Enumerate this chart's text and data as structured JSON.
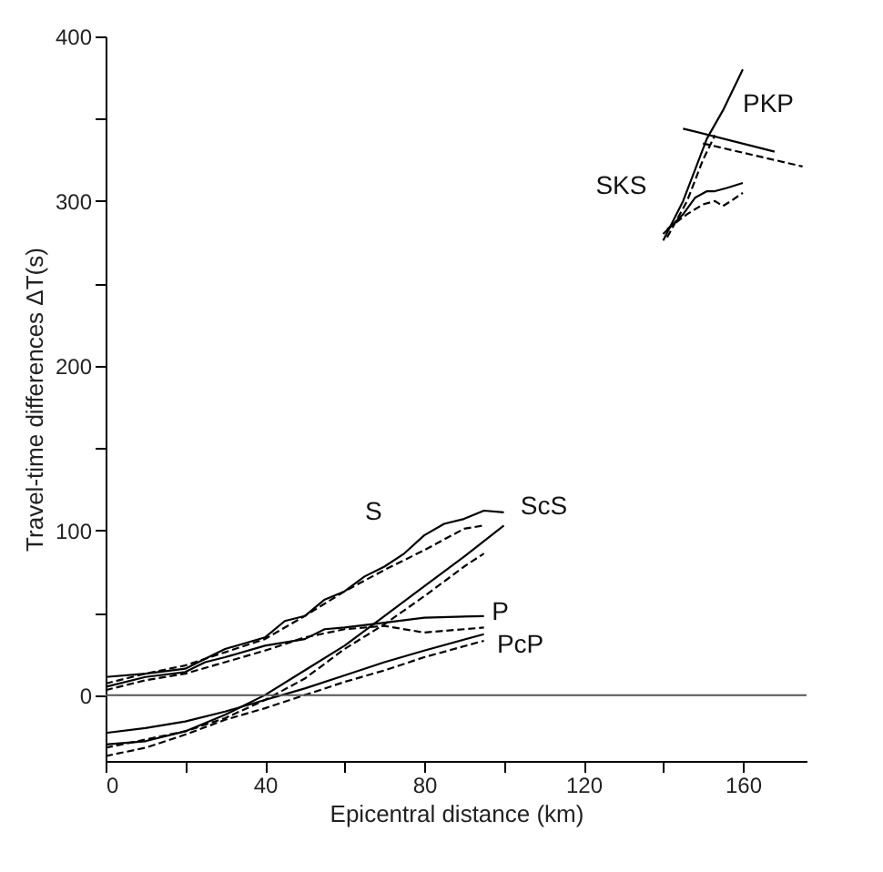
{
  "chart_data": {
    "type": "line",
    "xlabel": "Epicentral distance (km)",
    "ylabel": "Travel-time differences ΔT(s)",
    "xlim": [
      0,
      176
    ],
    "xticks": [
      0,
      {
        "value": 20,
        "label": null
      },
      40,
      {
        "value": 60,
        "label": null
      },
      80,
      {
        "value": 100,
        "label": null
      },
      120,
      {
        "value": 140,
        "label": null
      },
      160
    ],
    "ylim": [
      -40,
      400
    ],
    "yticks": [
      0,
      {
        "value": 50,
        "label": null
      },
      100,
      {
        "value": 150,
        "label": null
      },
      200,
      {
        "value": 250,
        "label": null
      },
      300,
      {
        "value": 350,
        "label": null
      },
      400
    ],
    "grid": false,
    "series": [
      {
        "color": "#000000",
        "line_style": "solid",
        "x": [
          0,
          10,
          20,
          25,
          30,
          40,
          45,
          50,
          55,
          60,
          65,
          70,
          75,
          80,
          85,
          90,
          95,
          100
        ],
        "values": [
          11,
          13,
          16,
          22,
          28,
          35,
          45,
          48,
          58,
          63,
          72,
          78,
          86,
          97,
          104,
          107,
          112,
          111
        ]
      },
      {
        "color": "#000000",
        "line_style": "dashed",
        "x": [
          0,
          10,
          20,
          30,
          40,
          50,
          60,
          70,
          80,
          90,
          95
        ],
        "values": [
          7,
          13,
          18,
          26,
          34,
          48,
          63,
          76,
          88,
          101,
          103
        ]
      },
      {
        "color": "#000000",
        "line_style": "solid",
        "x": [
          0,
          10,
          20,
          25,
          30,
          40,
          50,
          55,
          60,
          70,
          80,
          95
        ],
        "values": [
          5,
          11,
          14,
          20,
          23,
          30,
          34,
          40,
          41,
          44,
          47,
          48
        ]
      },
      {
        "color": "#000000",
        "line_style": "dashed",
        "x": [
          0,
          10,
          20,
          30,
          40,
          50,
          60,
          70,
          80,
          95
        ],
        "values": [
          3,
          9,
          13,
          20,
          27,
          35,
          40,
          42,
          38,
          41
        ]
      },
      {
        "color": "#000000",
        "line_style": "solid",
        "x": [
          0,
          10,
          20,
          30,
          40,
          50,
          60,
          70,
          80,
          90,
          100
        ],
        "values": [
          -30,
          -28,
          -22,
          -12,
          0,
          15,
          30,
          48,
          66,
          84,
          103
        ]
      },
      {
        "color": "#000000",
        "line_style": "dashed",
        "x": [
          0,
          20,
          30,
          40,
          50,
          60,
          70,
          80,
          90,
          95
        ],
        "values": [
          -32,
          -22,
          -14,
          -3,
          10,
          28,
          43,
          60,
          78,
          86
        ]
      },
      {
        "color": "#000000",
        "line_style": "solid",
        "x": [
          0,
          10,
          20,
          30,
          40,
          50,
          60,
          70,
          80,
          95
        ],
        "values": [
          -23,
          -20,
          -16,
          -10,
          -3,
          4,
          12,
          20,
          27,
          37
        ]
      },
      {
        "color": "#000000",
        "line_style": "dashed",
        "x": [
          0,
          10,
          20,
          30,
          40,
          50,
          60,
          70,
          80,
          95
        ],
        "values": [
          -37,
          -32,
          -24,
          -15,
          -8,
          0,
          8,
          15,
          23,
          33
        ]
      },
      {
        "color": "#000000",
        "line_style": "solid",
        "x": [
          140,
          145,
          151,
          155,
          160
        ],
        "values": [
          276,
          300,
          338,
          355,
          380
        ]
      },
      {
        "color": "#000000",
        "line_style": "dashed",
        "x": [
          141,
          146,
          150,
          153
        ],
        "values": [
          278,
          300,
          325,
          340
        ]
      },
      {
        "color": "#000000",
        "line_style": "solid",
        "x": [
          140,
          145,
          148,
          151,
          153,
          156,
          160
        ],
        "values": [
          280,
          292,
          302,
          306,
          306,
          308,
          311
        ]
      },
      {
        "color": "#000000",
        "line_style": "dashed",
        "x": [
          141,
          146,
          150,
          153,
          155,
          157,
          160
        ],
        "values": [
          283,
          292,
          298,
          300,
          297,
          300,
          305
        ]
      },
      {
        "color": "#000000",
        "line_style": "solid",
        "x": [
          145,
          168
        ],
        "values": [
          344,
          330
        ]
      },
      {
        "color": "#000000",
        "line_style": "dashed",
        "x": [
          150,
          175
        ],
        "values": [
          335,
          321
        ]
      }
    ],
    "ref_lines": [
      {
        "axis": "y",
        "value": 0,
        "color": "#555555"
      }
    ],
    "annotations": [
      {
        "text": "S",
        "x": 70,
        "y": 78
      },
      {
        "text": "ScS",
        "x": 100,
        "y": 103
      },
      {
        "text": "P",
        "x": 95,
        "y": 48
      },
      {
        "text": "PcP",
        "x": 95,
        "y": 37
      },
      {
        "text": "SKS",
        "x": 145,
        "y": 300
      },
      {
        "text": "PKP",
        "x": 160,
        "y": 334
      }
    ]
  }
}
